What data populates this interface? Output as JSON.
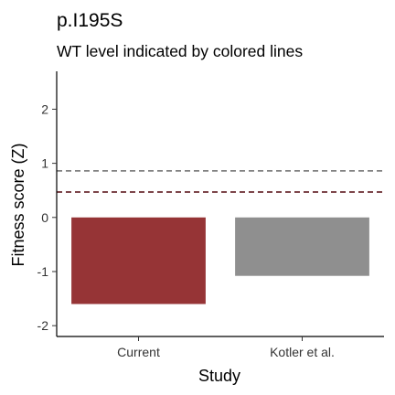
{
  "chart_data": {
    "type": "bar",
    "title": "p.I195S",
    "subtitle": "WT level indicated by colored lines",
    "xlabel": "Study",
    "ylabel": "Fitness score (Z)",
    "categories": [
      "Current",
      "Kotler et al."
    ],
    "values": [
      -1.6,
      -1.08
    ],
    "bar_colors": [
      "#963436",
      "#8f8f8f"
    ],
    "ylim": [
      -2.2,
      2.7
    ],
    "yticks": [
      -2,
      -1,
      0,
      1,
      2
    ],
    "ytick_labels": [
      "-2",
      "-1",
      "0",
      "1",
      "2"
    ],
    "reference_lines": [
      {
        "value": 0.86,
        "color": "#808080",
        "style": "dashed"
      },
      {
        "value": 0.47,
        "color": "#6b2b30",
        "style": "dashed"
      }
    ],
    "grid": false,
    "legend": "none"
  }
}
